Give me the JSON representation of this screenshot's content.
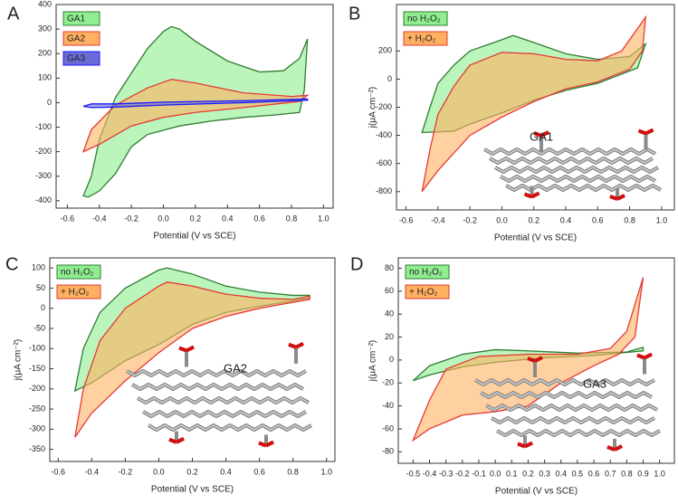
{
  "chart_data": [
    {
      "type": "line",
      "panel_label": "A",
      "xlabel": "Potential (V vs SCE)",
      "xlim": [
        -0.67,
        1.06
      ],
      "ylim": [
        -430,
        400
      ],
      "xticks": [
        -0.6,
        -0.4,
        -0.2,
        {
          "value": 0,
          "label": "0.0"
        },
        0.2,
        0.4,
        0.6,
        0.8,
        {
          "value": 1,
          "label": "1.0"
        }
      ],
      "yticks": [
        -400,
        -300,
        -200,
        -100,
        0,
        100,
        200,
        300,
        400
      ],
      "series": [
        {
          "name": "GA1",
          "color": "#90ee90",
          "edgecolor": "#2e7d32",
          "x": [
            -0.5,
            -0.45,
            -0.4,
            -0.3,
            -0.2,
            -0.1,
            0,
            0.05,
            0.1,
            0.2,
            0.4,
            0.6,
            0.75,
            0.85,
            0.9,
            0.88,
            0.85,
            0.7,
            0.5,
            0.3,
            0.1,
            -0.1,
            -0.2,
            -0.3,
            -0.4,
            -0.47
          ],
          "values": [
            -380,
            -300,
            -150,
            20,
            120,
            220,
            290,
            310,
            300,
            250,
            170,
            125,
            130,
            180,
            260,
            50,
            -40,
            -50,
            -60,
            -75,
            -95,
            -130,
            -180,
            -290,
            -360,
            -385
          ]
        },
        {
          "name": "GA2",
          "color": "#ffb060",
          "edgecolor": "#e53935",
          "x": [
            -0.5,
            -0.45,
            -0.3,
            -0.1,
            0.05,
            0.2,
            0.5,
            0.8,
            0.9,
            0.85,
            0.5,
            0.2,
            0,
            -0.2,
            -0.4
          ],
          "values": [
            -200,
            -110,
            -10,
            60,
            95,
            80,
            40,
            25,
            30,
            5,
            -20,
            -40,
            -60,
            -95,
            -170
          ]
        },
        {
          "name": "GA3",
          "color": "#6b6bd6",
          "edgecolor": "#1a1aff",
          "x": [
            -0.5,
            -0.45,
            -0.3,
            0,
            0.5,
            0.9,
            0.9,
            0.5,
            0,
            -0.3,
            -0.45
          ],
          "values": [
            -15,
            -5,
            -5,
            2,
            8,
            15,
            10,
            0,
            -10,
            -18,
            -20
          ]
        }
      ]
    },
    {
      "type": "line",
      "panel_label": "B",
      "xlabel": "Potential (V vs SCE)",
      "ylabel": "j(μA cm⁻²)",
      "annotation": "GA1",
      "xlim": [
        -0.66,
        1.08
      ],
      "ylim": [
        -930,
        530
      ],
      "xticks": [
        -0.6,
        -0.4,
        -0.2,
        {
          "value": 0,
          "label": "0.0"
        },
        0.2,
        0.4,
        0.6,
        0.8,
        {
          "value": 1,
          "label": "1.0"
        }
      ],
      "yticks": [
        -800,
        -600,
        -400,
        -200,
        0,
        200
      ],
      "series": [
        {
          "name": "no H₂O₂",
          "color": "#90ee90",
          "edgecolor": "#2e7d32",
          "x": [
            -0.5,
            -0.45,
            -0.4,
            -0.3,
            -0.2,
            0,
            0.07,
            0.2,
            0.4,
            0.6,
            0.8,
            0.9,
            0.85,
            0.6,
            0.4,
            0.2,
            0,
            -0.2,
            -0.3
          ],
          "values": [
            -380,
            -200,
            -30,
            100,
            200,
            280,
            310,
            260,
            180,
            140,
            160,
            250,
            80,
            -30,
            -80,
            -150,
            -240,
            -320,
            -370
          ]
        },
        {
          "name": "+ H₂O₂",
          "color": "#ffb060",
          "edgecolor": "#e53935",
          "x": [
            -0.5,
            -0.45,
            -0.4,
            -0.3,
            -0.2,
            0,
            0.2,
            0.4,
            0.6,
            0.75,
            0.9,
            0.88,
            0.8,
            0.6,
            0.4,
            0.2,
            0,
            -0.2,
            -0.4
          ],
          "values": [
            -800,
            -500,
            -250,
            -50,
            100,
            190,
            180,
            140,
            130,
            200,
            440,
            200,
            70,
            -20,
            -70,
            -160,
            -270,
            -400,
            -650
          ]
        }
      ]
    },
    {
      "type": "line",
      "panel_label": "C",
      "xlabel": "Potential (V vs SCE)",
      "ylabel": "j(μA cm⁻²)",
      "annotation": "GA2",
      "xlim": [
        -0.65,
        1.05
      ],
      "ylim": [
        -380,
        125
      ],
      "xticks": [
        -0.6,
        -0.4,
        -0.2,
        {
          "value": 0,
          "label": "0.0"
        },
        0.2,
        0.4,
        0.6,
        0.8,
        {
          "value": 1,
          "label": "1.0"
        }
      ],
      "yticks": [
        -350,
        -300,
        -250,
        -200,
        -150,
        -100,
        -50,
        0,
        50,
        100
      ],
      "series": [
        {
          "name": "no H₂O₂",
          "color": "#90ee90",
          "edgecolor": "#2e7d32",
          "x": [
            -0.5,
            -0.45,
            -0.35,
            -0.2,
            0,
            0.05,
            0.2,
            0.4,
            0.6,
            0.8,
            0.9,
            0.9,
            0.6,
            0.4,
            0.2,
            0,
            -0.2,
            -0.4
          ],
          "values": [
            -205,
            -100,
            -10,
            50,
            95,
            100,
            85,
            55,
            40,
            32,
            32,
            25,
            5,
            -10,
            -40,
            -90,
            -130,
            -185
          ]
        },
        {
          "name": "+ H₂O₂",
          "color": "#ffb060",
          "edgecolor": "#e53935",
          "x": [
            -0.5,
            -0.45,
            -0.35,
            -0.2,
            0,
            0.05,
            0.2,
            0.4,
            0.6,
            0.8,
            0.9,
            0.9,
            0.6,
            0.4,
            0.2,
            0,
            -0.2,
            -0.4
          ],
          "values": [
            -320,
            -200,
            -80,
            0,
            55,
            65,
            55,
            35,
            25,
            22,
            30,
            22,
            0,
            -20,
            -50,
            -110,
            -180,
            -260
          ]
        }
      ]
    },
    {
      "type": "line",
      "panel_label": "D",
      "xlabel": "Potential (V vs SCE)",
      "ylabel": "j(μA cm⁻²)",
      "annotation": "GA3",
      "xlim": [
        -0.59,
        1.09
      ],
      "ylim": [
        -90,
        89
      ],
      "xticks": [
        -0.5,
        -0.4,
        -0.3,
        -0.2,
        -0.1,
        {
          "value": 0,
          "label": "0.0"
        },
        0.1,
        0.2,
        0.3,
        0.4,
        0.5,
        0.6,
        0.7,
        0.8,
        0.9,
        {
          "value": 1,
          "label": "1.0"
        }
      ],
      "yticks": [
        -80,
        -60,
        -40,
        -20,
        0,
        20,
        40,
        60,
        80
      ],
      "series": [
        {
          "name": "no H₂O₂",
          "color": "#90ee90",
          "edgecolor": "#2e7d32",
          "x": [
            -0.5,
            -0.4,
            -0.2,
            0,
            0.2,
            0.5,
            0.8,
            0.9,
            0.9,
            0.6,
            0.3,
            0,
            -0.2,
            -0.4
          ],
          "values": [
            -18,
            -5,
            5,
            9,
            8,
            6,
            7,
            11,
            8,
            4,
            2,
            -2,
            -6,
            -13
          ]
        },
        {
          "name": "+ H₂O₂",
          "color": "#ffb060",
          "edgecolor": "#e53935",
          "x": [
            -0.5,
            -0.4,
            -0.3,
            -0.1,
            0.2,
            0.5,
            0.7,
            0.8,
            0.9,
            0.85,
            0.75,
            0.6,
            0.4,
            0.2,
            0,
            -0.2,
            -0.4
          ],
          "values": [
            -70,
            -35,
            -8,
            3,
            5,
            5,
            10,
            25,
            72,
            20,
            5,
            -5,
            -20,
            -40,
            -45,
            -48,
            -60
          ]
        }
      ]
    }
  ]
}
